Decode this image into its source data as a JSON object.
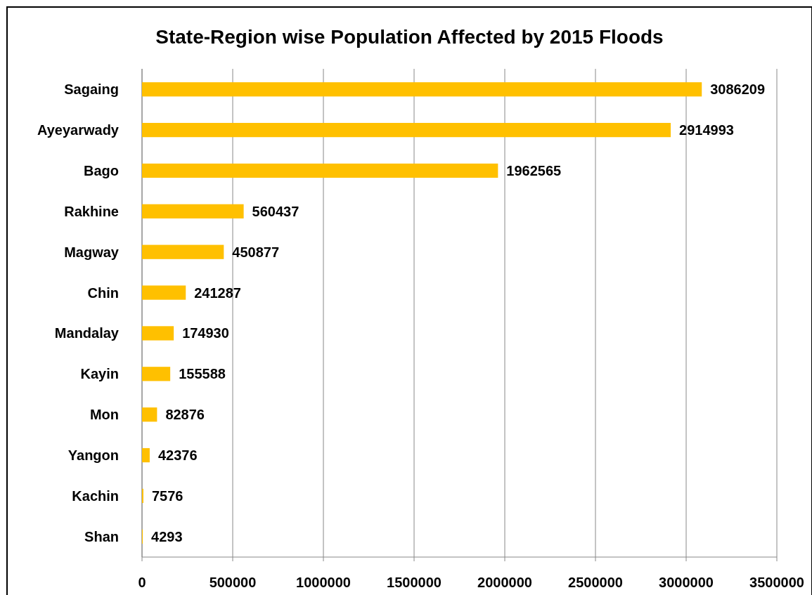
{
  "chart_data": {
    "type": "bar",
    "orientation": "horizontal",
    "title": "State-Region wise Population Affected by 2015 Floods",
    "categories": [
      "Sagaing",
      "Ayeyarwady",
      "Bago",
      "Rakhine",
      "Magway",
      "Chin",
      "Mandalay",
      "Kayin",
      "Mon",
      "Yangon",
      "Kachin",
      "Shan"
    ],
    "values": [
      3086209,
      2914993,
      1962565,
      560437,
      450877,
      241287,
      174930,
      155588,
      82876,
      42376,
      7576,
      4293
    ],
    "color": "#ffc000",
    "xlim": [
      0,
      3500000
    ],
    "xticks": [
      0,
      500000,
      1000000,
      1500000,
      2000000,
      2500000,
      3000000,
      3500000
    ],
    "grid": "x",
    "data_labels": true
  }
}
